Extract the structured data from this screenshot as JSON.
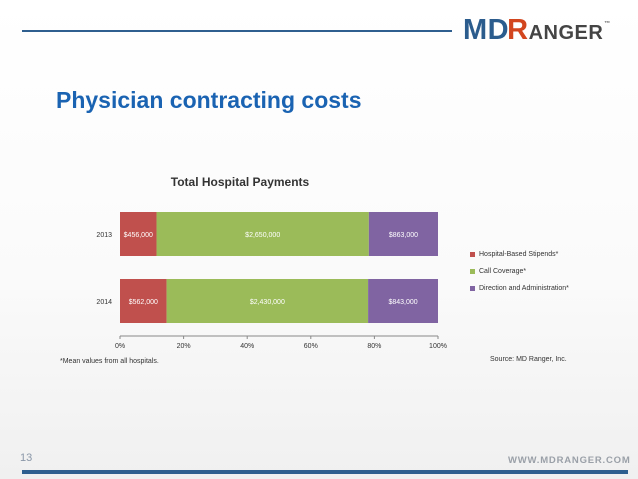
{
  "logo": {
    "md": "MD",
    "r": "R",
    "rest": "ANGER",
    "tm": "™"
  },
  "slide": {
    "title": "Physician contracting costs",
    "page_number": "13",
    "url": "WWW.MDRANGER.COM"
  },
  "colors": {
    "stipends": "#c0504d",
    "coverage": "#9bbb59",
    "direction": "#8064a2",
    "accent": "#1a63b2",
    "rule": "#2f5f8f"
  },
  "chart_data": {
    "type": "bar",
    "orientation": "horizontal",
    "stacked": "percent",
    "title": "Total Hospital Payments",
    "categories": [
      "2013",
      "2014"
    ],
    "series": [
      {
        "name": "Hospital-Based Stipends*",
        "values": [
          456000,
          562000
        ],
        "labels": [
          "$456,000",
          "$562,000"
        ]
      },
      {
        "name": "Call Coverage*",
        "values": [
          2650000,
          2430000
        ],
        "labels": [
          "$2,650,000",
          "$2,430,000"
        ]
      },
      {
        "name": "Direction and Administration*",
        "values": [
          863000,
          843000
        ],
        "labels": [
          "$863,000",
          "$843,000"
        ]
      }
    ],
    "xticks": [
      "0%",
      "20%",
      "40%",
      "60%",
      "80%",
      "100%"
    ],
    "xlim": [
      0,
      100
    ],
    "legend": "right",
    "note": "*Mean values from all hospitals.",
    "source": "Source: MD Ranger, Inc."
  }
}
